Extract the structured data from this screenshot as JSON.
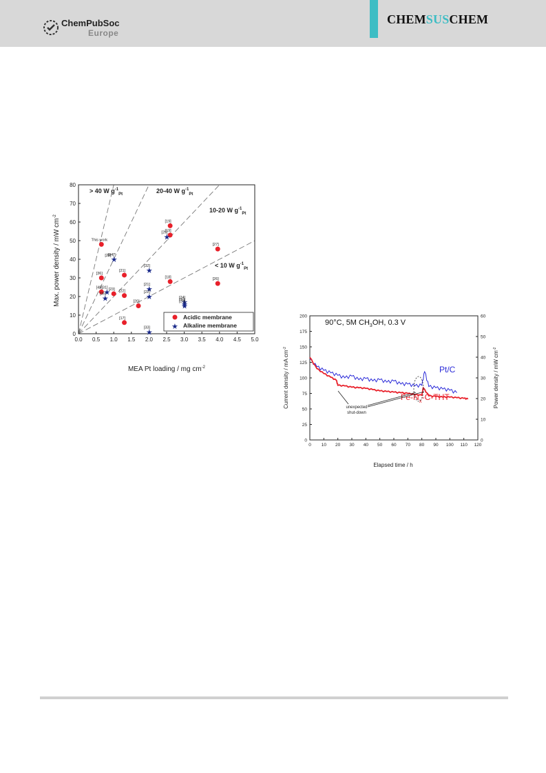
{
  "header": {
    "publisher_name": "ChemPubSoc",
    "publisher_sub": "Europe",
    "journal_prefix": "CHEM",
    "journal_mid": "SUS",
    "journal_suffix": "CHEM",
    "accent_color": "#3dbdc4"
  },
  "chart_data": [
    {
      "type": "scatter",
      "xlabel": "MEA Pt loading / mg cm",
      "xlabel_sup": "-2",
      "ylabel": "Max. power density / mW cm",
      "ylabel_sup": "-2",
      "xlim": [
        0.0,
        5.0
      ],
      "ylim": [
        0,
        80
      ],
      "xticks": [
        "0.0",
        "0.5",
        "1.0",
        "1.5",
        "2.0",
        "2.5",
        "3.0",
        "3.5",
        "4.0",
        "4.5",
        "5.0"
      ],
      "yticks": [
        "0",
        "10",
        "20",
        "30",
        "40",
        "50",
        "60",
        "70",
        "80"
      ],
      "legend_position": "bottom-right",
      "zone_labels": [
        {
          "text": "> 40 W g",
          "sup": "-1",
          "sub": "Pt"
        },
        {
          "text": "20-40 W g",
          "sup": "-1",
          "sub": "Pt"
        },
        {
          "text": "10-20 W g",
          "sup": "-1",
          "sub": "Pt"
        },
        {
          "text": "< 10 W g",
          "sup": "-1",
          "sub": "Pt"
        }
      ],
      "series": [
        {
          "name": "Acidic membrane",
          "color": "#e8202a",
          "marker": "circle",
          "points": [
            {
              "x": 0.65,
              "y": 48,
              "label": "This work"
            },
            {
              "x": 0.65,
              "y": 22.5,
              "label": "[49]"
            },
            {
              "x": 0.65,
              "y": 30,
              "label": "[36]"
            },
            {
              "x": 1.0,
              "y": 21.5,
              "label": "[23]"
            },
            {
              "x": 1.3,
              "y": 31.5,
              "label": "[21]"
            },
            {
              "x": 1.3,
              "y": 20.5,
              "label": "[22]"
            },
            {
              "x": 1.3,
              "y": 6,
              "label": "[17]"
            },
            {
              "x": 1.7,
              "y": 15,
              "label": "[20]"
            },
            {
              "x": 2.6,
              "y": 58,
              "label": "[19]"
            },
            {
              "x": 2.6,
              "y": 53,
              "label": "[19]"
            },
            {
              "x": 2.6,
              "y": 28,
              "label": "[18]"
            },
            {
              "x": 3.95,
              "y": 45.5,
              "label": "[27]"
            },
            {
              "x": 3.95,
              "y": 27,
              "label": "[26]"
            }
          ]
        },
        {
          "name": "Alkaline membrane",
          "color": "#1a2a8a",
          "marker": "star",
          "points": [
            {
              "x": 1.0,
              "y": 40,
              "label": "[34]*"
            },
            {
              "x": 0.8,
              "y": 22.5,
              "label": "[31]"
            },
            {
              "x": 0.75,
              "y": 19,
              "label": "[35]"
            },
            {
              "x": 2.0,
              "y": 34,
              "label": "[32]"
            },
            {
              "x": 2.0,
              "y": 24,
              "label": "[21]"
            },
            {
              "x": 2.0,
              "y": 20,
              "label": "[22]"
            },
            {
              "x": 2.0,
              "y": 1,
              "label": "[33]"
            },
            {
              "x": 2.5,
              "y": 52,
              "label": "[25]"
            },
            {
              "x": 3.0,
              "y": 17,
              "label": "[24]"
            },
            {
              "x": 3.0,
              "y": 16,
              "label": "[30]"
            },
            {
              "x": 3.0,
              "y": 15,
              "label": "[29]"
            }
          ]
        }
      ],
      "annotation_28": "[28]"
    },
    {
      "type": "line",
      "title": "90°C, 5M CH",
      "title_sub": "3",
      "title_rest": "OH, 0.3 V",
      "xlabel": "Elapsed time / h",
      "ylabel_left": "Current density / mA cm",
      "ylabel_left_sup": "-2",
      "ylabel_right": "Power density / mW cm",
      "ylabel_right_sup": "-2",
      "xlim": [
        0,
        120
      ],
      "ylim_left": [
        0,
        200
      ],
      "ylim_right": [
        0,
        60
      ],
      "xticks": [
        "0",
        "10",
        "20",
        "30",
        "40",
        "50",
        "60",
        "70",
        "80",
        "90",
        "100",
        "110",
        "120"
      ],
      "yticks_left": [
        "0",
        "25",
        "50",
        "75",
        "100",
        "125",
        "150",
        "175",
        "200"
      ],
      "yticks_right": [
        "0",
        "10",
        "20",
        "30",
        "40",
        "50",
        "60"
      ],
      "annotation": "unexpected shut-down",
      "series": [
        {
          "name": "Pt/C",
          "color": "#2a2ad8",
          "x": [
            0,
            5,
            10,
            15,
            20,
            25,
            30,
            35,
            40,
            45,
            50,
            55,
            60,
            65,
            70,
            75,
            80,
            82,
            85,
            90,
            95,
            100,
            105
          ],
          "y": [
            130,
            118,
            112,
            108,
            104,
            100,
            103,
            97,
            99,
            95,
            97,
            93,
            95,
            90,
            90,
            87,
            88,
            110,
            86,
            84,
            82,
            80,
            76
          ]
        },
        {
          "name": "Fe-N",
          "name_sub": "x",
          "name_rest": "-C-THT",
          "color": "#e8202a",
          "x": [
            0,
            5,
            10,
            15,
            19,
            20,
            25,
            30,
            35,
            40,
            45,
            50,
            55,
            60,
            65,
            70,
            75,
            80,
            81,
            85,
            90,
            95,
            100,
            105,
            110,
            113
          ],
          "y": [
            133,
            115,
            107,
            101,
            96,
            88,
            87,
            85,
            84,
            83,
            81,
            79,
            78,
            77,
            76,
            75,
            73,
            72,
            84,
            71,
            70,
            69,
            69,
            68,
            67,
            66
          ]
        }
      ]
    }
  ]
}
